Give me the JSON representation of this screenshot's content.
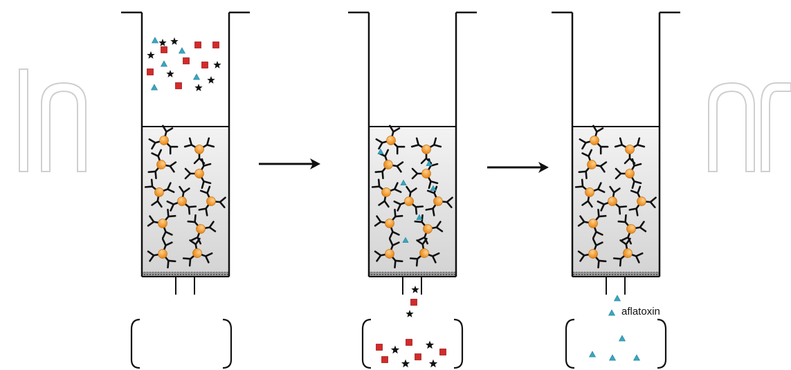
{
  "diagram": {
    "type": "immunoaffinity-column-process",
    "stages": [
      {
        "name": "sample-loading",
        "sample_contents": [
          "mycotoxin-triangle",
          "impurity-square",
          "impurity-star"
        ],
        "binding": "none",
        "eluate": "empty"
      },
      {
        "name": "washing",
        "bound_molecules": "triangles-on-antibodies",
        "eluate": [
          "impurity-star",
          "impurity-square"
        ]
      },
      {
        "name": "elution",
        "bound_molecules": "none",
        "eluate": [
          "mycotoxin-triangle"
        ]
      }
    ],
    "label": "aflatoxin",
    "colors": {
      "bead": "#f39a1e",
      "triangle": "#3aa6c2",
      "square": "#d42a2a",
      "star": "#111111",
      "column_fill": "#e4e4e4",
      "watermark": "#cccccc"
    },
    "icons": [
      "antibody-bead-icon",
      "triangle-icon",
      "square-icon",
      "star-icon",
      "arrow-icon"
    ]
  }
}
